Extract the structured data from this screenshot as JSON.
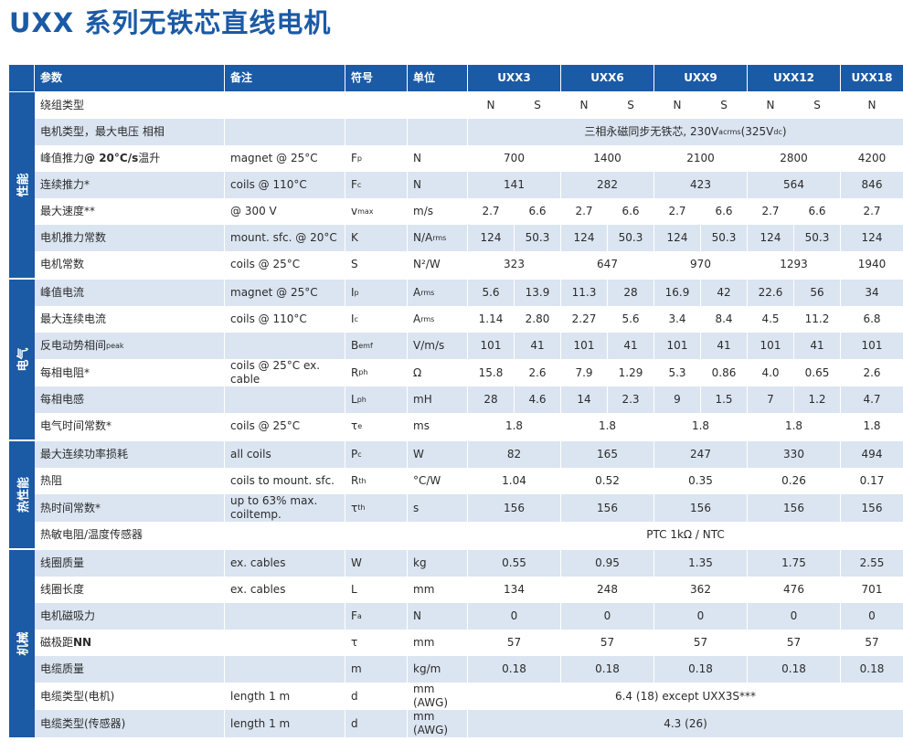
{
  "title": "UXX 系列无铁芯直线电机",
  "table": {
    "header": {
      "param": "参数",
      "note": "备注",
      "symbol": "符号",
      "unit": "单位",
      "models": [
        "UXX3",
        "UXX6",
        "UXX9",
        "UXX12",
        "UXX18"
      ]
    },
    "groups": [
      {
        "label": "性能",
        "rows": [
          {
            "param": "绕组类型",
            "values": [
              "N",
              "S",
              "N",
              "S",
              "N",
              "S",
              "N",
              "S",
              "N"
            ]
          },
          {
            "param": "电机类型，最大电压  相相",
            "values": [
              [
                "三相永磁同步无铁芯, 230V",
                {
                  "sub": "acrms"
                },
                "(325V",
                {
                  "sub": "dc"
                },
                ")"
              ]
            ]
          },
          {
            "param": [
              "峰值推力 ",
              {
                "b": "@ 20°C/s"
              },
              " 温升"
            ],
            "note": "magnet @ 25°C",
            "symbol": [
              "F",
              {
                "sub": "p"
              }
            ],
            "unit": "N",
            "values": [
              "700",
              "1400",
              "2100",
              "2800",
              "4200"
            ]
          },
          {
            "param": "连续推力*",
            "note": "coils @ 110°C",
            "symbol": [
              "F",
              {
                "sub": "c"
              }
            ],
            "unit": "N",
            "values": [
              "141",
              "282",
              "423",
              "564",
              "846"
            ]
          },
          {
            "param": "最大速度**",
            "note": "@ 300 V",
            "symbol": [
              "v",
              {
                "sub": "max"
              }
            ],
            "unit": "m/s",
            "values": [
              "2.7",
              "6.6",
              "2.7",
              "6.6",
              "2.7",
              "6.6",
              "2.7",
              "6.6",
              "2.7"
            ]
          },
          {
            "param": "电机推力常数",
            "note": "mount. sfc. @ 20°C",
            "symbol": "K",
            "unit": [
              "N/A",
              {
                "sub": "rms"
              }
            ],
            "values": [
              "124",
              "50.3",
              "124",
              "50.3",
              "124",
              "50.3",
              "124",
              "50.3",
              "124"
            ]
          },
          {
            "param": "电机常数",
            "note": "coils @ 25°C",
            "symbol": "S",
            "unit": "N²/W",
            "values": [
              "323",
              "647",
              "970",
              "1293",
              "1940"
            ]
          }
        ]
      },
      {
        "label": "电气",
        "rows": [
          {
            "param": "峰值电流",
            "note": "magnet @ 25°C",
            "symbol": [
              "I",
              {
                "sub": "p"
              }
            ],
            "unit": [
              "A",
              {
                "sub": "rms"
              }
            ],
            "values": [
              "5.6",
              "13.9",
              "11.3",
              "28",
              "16.9",
              "42",
              "22.6",
              "56",
              "34"
            ]
          },
          {
            "param": "最大连续电流",
            "note": "coils @ 110°C",
            "symbol": [
              "I",
              {
                "sub": "c"
              }
            ],
            "unit": [
              "A",
              {
                "sub": "rms"
              }
            ],
            "values": [
              "1.14",
              "2.80",
              "2.27",
              "5.6",
              "3.4",
              "8.4",
              "4.5",
              "11.2",
              "6.8"
            ]
          },
          {
            "param": [
              "反电动势相间",
              {
                "sub": "peak"
              }
            ],
            "symbol": [
              "B",
              {
                "sub": "emf"
              }
            ],
            "unit": "V/m/s",
            "values": [
              "101",
              "41",
              "101",
              "41",
              "101",
              "41",
              "101",
              "41",
              "101"
            ]
          },
          {
            "param": "每相电阻*",
            "note": "coils @ 25°C ex. cable",
            "symbol": [
              "R",
              {
                "sub": "ph"
              }
            ],
            "unit": "Ω",
            "values": [
              "15.8",
              "2.6",
              "7.9",
              "1.29",
              "5.3",
              "0.86",
              "4.0",
              "0.65",
              "2.6"
            ]
          },
          {
            "param": "每相电感",
            "symbol": [
              "L",
              {
                "sub": "ph"
              }
            ],
            "unit": "mH",
            "values": [
              "28",
              "4.6",
              "14",
              "2.3",
              "9",
              "1.5",
              "7",
              "1.2",
              "4.7"
            ]
          },
          {
            "param": "电气时间常数*",
            "note": "coils @ 25°C",
            "symbol": [
              "τ",
              {
                "sub": "e"
              }
            ],
            "unit": "ms",
            "values": [
              "1.8",
              "1.8",
              "1.8",
              "1.8",
              "1.8"
            ]
          }
        ]
      },
      {
        "label": "热性能",
        "rows": [
          {
            "param": "最大连续功率损耗",
            "note": "all coils",
            "symbol": [
              "P",
              {
                "sub": "c"
              }
            ],
            "unit": "W",
            "values": [
              "82",
              "165",
              "247",
              "330",
              "494"
            ]
          },
          {
            "param": "热阻",
            "note": "coils to mount. sfc.",
            "symbol": [
              "R",
              {
                "sub": "th"
              }
            ],
            "unit": "°C/W",
            "values": [
              "1.04",
              "0.52",
              "0.35",
              "0.26",
              "0.17"
            ]
          },
          {
            "param": "热时间常数*",
            "note": "up to 63% max. coiltemp.",
            "symbol": [
              "τ",
              {
                "sub": "th"
              }
            ],
            "unit": "s",
            "values": [
              "156",
              "156",
              "156",
              "156",
              "156"
            ]
          },
          {
            "param": "热敏电阻/温度传感器",
            "values": [
              "PTC 1kΩ / NTC"
            ]
          }
        ]
      },
      {
        "label": "机械",
        "rows": [
          {
            "param": "线圈质量",
            "note": "ex. cables",
            "symbol": "W",
            "unit": "kg",
            "values": [
              "0.55",
              "0.95",
              "1.35",
              "1.75",
              "2.55"
            ]
          },
          {
            "param": "线圈长度",
            "note": "ex. cables",
            "symbol": "L",
            "unit": "mm",
            "values": [
              "134",
              "248",
              "362",
              "476",
              "701"
            ]
          },
          {
            "param": "电机磁吸力",
            "symbol": [
              "F",
              {
                "sub": "a"
              }
            ],
            "unit": "N",
            "values": [
              "0",
              "0",
              "0",
              "0",
              "0"
            ]
          },
          {
            "param": [
              "磁极距 ",
              {
                "b": "NN"
              }
            ],
            "symbol": "τ",
            "unit": "mm",
            "values": [
              "57",
              "57",
              "57",
              "57",
              "57"
            ]
          },
          {
            "param": "电缆质量",
            "symbol": "m",
            "unit": "kg/m",
            "values": [
              "0.18",
              "0.18",
              "0.18",
              "0.18",
              "0.18"
            ]
          },
          {
            "param": "电缆类型(电机)",
            "note": "length 1 m",
            "symbol": "d",
            "unit": "mm (AWG)",
            "values": [
              "6.4 (18) except UXX3S***"
            ]
          },
          {
            "param": "电缆类型(传感器)",
            "note": "length 1 m",
            "symbol": "d",
            "unit": "mm (AWG)",
            "values": [
              "4.3 (26)"
            ]
          }
        ]
      }
    ]
  }
}
